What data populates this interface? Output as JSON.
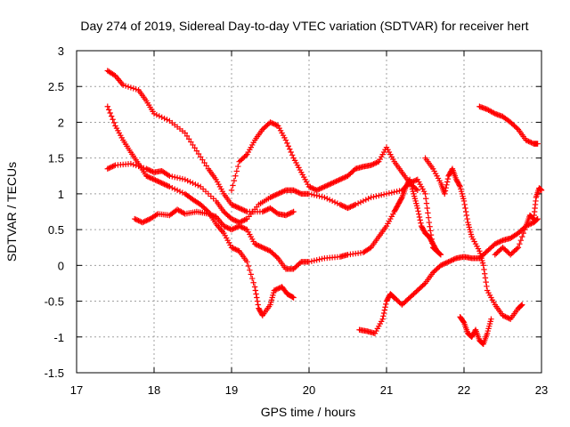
{
  "chart_data": {
    "type": "scatter",
    "title": "Day 274 of 2019, Sidereal Day-to-day VTEC variation (SDTVAR) for receiver hert",
    "xlabel": "GPS time / hours",
    "ylabel": "SDTVAR / TECUs",
    "xlim": [
      17,
      23
    ],
    "ylim": [
      -1.5,
      3
    ],
    "xticks": [
      "17",
      "18",
      "19",
      "20",
      "21",
      "22",
      "23"
    ],
    "yticks": [
      "-1.5",
      "-1",
      "-0.5",
      "0",
      "0.5",
      "1",
      "1.5",
      "2",
      "2.5",
      "3"
    ],
    "grid": true,
    "marker": "+",
    "color": "#ff0000",
    "series": [
      {
        "points": [
          [
            17.4,
            2.72
          ],
          [
            17.5,
            2.65
          ],
          [
            17.6,
            2.52
          ],
          [
            17.8,
            2.45
          ],
          [
            17.9,
            2.3
          ],
          [
            18.0,
            2.12
          ],
          [
            18.2,
            2.02
          ],
          [
            18.4,
            1.85
          ],
          [
            18.55,
            1.6
          ],
          [
            18.7,
            1.35
          ],
          [
            18.8,
            1.2
          ],
          [
            18.9,
            1.0
          ],
          [
            19.0,
            0.85
          ],
          [
            19.1,
            0.8
          ],
          [
            19.2,
            0.75
          ],
          [
            19.4,
            0.75
          ],
          [
            19.5,
            0.8
          ],
          [
            19.6,
            0.72
          ],
          [
            19.7,
            0.7
          ],
          [
            19.8,
            0.75
          ]
        ]
      },
      {
        "points": [
          [
            17.4,
            2.22
          ],
          [
            17.5,
            1.95
          ],
          [
            17.6,
            1.75
          ],
          [
            17.7,
            1.58
          ],
          [
            17.8,
            1.42
          ],
          [
            17.9,
            1.25
          ],
          [
            18.0,
            1.2
          ],
          [
            18.1,
            1.15
          ],
          [
            18.2,
            1.1
          ],
          [
            18.4,
            1.0
          ],
          [
            18.5,
            0.92
          ],
          [
            18.6,
            0.85
          ],
          [
            18.7,
            0.75
          ],
          [
            18.8,
            0.58
          ],
          [
            18.9,
            0.45
          ],
          [
            19.0,
            0.25
          ],
          [
            19.1,
            0.2
          ],
          [
            19.2,
            0.05
          ],
          [
            19.3,
            -0.3
          ],
          [
            19.35,
            -0.6
          ],
          [
            19.4,
            -0.7
          ],
          [
            19.5,
            -0.55
          ],
          [
            19.55,
            -0.35
          ],
          [
            19.65,
            -0.3
          ],
          [
            19.72,
            -0.4
          ],
          [
            19.8,
            -0.45
          ]
        ]
      },
      {
        "points": [
          [
            17.4,
            1.35
          ],
          [
            17.5,
            1.4
          ],
          [
            17.7,
            1.42
          ],
          [
            17.9,
            1.35
          ],
          [
            18.0,
            1.3
          ],
          [
            18.1,
            1.32
          ],
          [
            18.2,
            1.25
          ],
          [
            18.4,
            1.2
          ],
          [
            18.6,
            1.1
          ],
          [
            18.8,
            0.9
          ],
          [
            18.9,
            0.75
          ],
          [
            19.0,
            0.65
          ],
          [
            19.1,
            0.6
          ],
          [
            19.2,
            0.65
          ],
          [
            19.35,
            0.85
          ],
          [
            19.5,
            0.95
          ],
          [
            19.6,
            1.0
          ],
          [
            19.7,
            1.05
          ],
          [
            19.8,
            1.05
          ],
          [
            19.9,
            1.0
          ],
          [
            20.0,
            1.0
          ],
          [
            20.2,
            0.95
          ],
          [
            20.4,
            0.85
          ],
          [
            20.5,
            0.8
          ],
          [
            20.6,
            0.85
          ],
          [
            20.8,
            0.95
          ],
          [
            21.0,
            1.0
          ],
          [
            21.2,
            1.05
          ],
          [
            21.3,
            1.15
          ],
          [
            21.4,
            1.2
          ],
          [
            21.5,
            1.0
          ],
          [
            21.55,
            0.6
          ],
          [
            21.6,
            0.25
          ],
          [
            21.65,
            0.2
          ],
          [
            21.7,
            0.15
          ]
        ]
      },
      {
        "points": [
          [
            17.75,
            0.65
          ],
          [
            17.85,
            0.6
          ],
          [
            17.95,
            0.65
          ],
          [
            18.05,
            0.72
          ],
          [
            18.2,
            0.7
          ],
          [
            18.3,
            0.78
          ],
          [
            18.4,
            0.72
          ],
          [
            18.55,
            0.75
          ],
          [
            18.7,
            0.72
          ],
          [
            18.8,
            0.68
          ],
          [
            18.9,
            0.55
          ],
          [
            19.0,
            0.5
          ],
          [
            19.1,
            0.55
          ],
          [
            19.2,
            0.5
          ],
          [
            19.3,
            0.3
          ],
          [
            19.4,
            0.25
          ],
          [
            19.5,
            0.2
          ],
          [
            19.6,
            0.1
          ],
          [
            19.7,
            -0.05
          ],
          [
            19.8,
            -0.05
          ],
          [
            19.9,
            0.05
          ],
          [
            20.0,
            0.05
          ],
          [
            20.2,
            0.1
          ],
          [
            20.4,
            0.12
          ],
          [
            20.5,
            0.15
          ],
          [
            20.7,
            0.18
          ],
          [
            20.8,
            0.25
          ],
          [
            20.9,
            0.4
          ],
          [
            21.0,
            0.55
          ],
          [
            21.1,
            0.75
          ],
          [
            21.15,
            0.85
          ],
          [
            21.2,
            0.95
          ],
          [
            21.25,
            1.1
          ],
          [
            21.3,
            1.2
          ],
          [
            21.35,
            1.0
          ],
          [
            21.4,
            0.8
          ],
          [
            21.45,
            0.55
          ],
          [
            21.5,
            0.45
          ],
          [
            21.55,
            0.4
          ],
          [
            21.6,
            0.3
          ],
          [
            21.65,
            0.2
          ]
        ]
      },
      {
        "points": [
          [
            19.0,
            1.05
          ],
          [
            19.1,
            1.45
          ],
          [
            19.2,
            1.55
          ],
          [
            19.3,
            1.75
          ],
          [
            19.4,
            1.9
          ],
          [
            19.5,
            2.0
          ],
          [
            19.6,
            1.95
          ],
          [
            19.7,
            1.75
          ],
          [
            19.8,
            1.5
          ],
          [
            19.9,
            1.3
          ],
          [
            20.0,
            1.1
          ],
          [
            20.1,
            1.05
          ],
          [
            20.2,
            1.1
          ],
          [
            20.3,
            1.15
          ],
          [
            20.4,
            1.2
          ],
          [
            20.5,
            1.25
          ],
          [
            20.6,
            1.35
          ],
          [
            20.7,
            1.38
          ],
          [
            20.8,
            1.4
          ],
          [
            20.9,
            1.45
          ],
          [
            21.0,
            1.65
          ],
          [
            21.1,
            1.45
          ],
          [
            21.2,
            1.3
          ],
          [
            21.3,
            1.15
          ],
          [
            21.4,
            1.05
          ]
        ]
      },
      {
        "points": [
          [
            20.65,
            -0.9
          ],
          [
            20.75,
            -0.92
          ],
          [
            20.85,
            -0.95
          ],
          [
            20.95,
            -0.75
          ],
          [
            21.0,
            -0.5
          ],
          [
            21.05,
            -0.4
          ],
          [
            21.1,
            -0.45
          ],
          [
            21.2,
            -0.55
          ],
          [
            21.3,
            -0.45
          ],
          [
            21.4,
            -0.35
          ],
          [
            21.5,
            -0.25
          ],
          [
            21.6,
            -0.1
          ],
          [
            21.7,
            0.0
          ],
          [
            21.8,
            0.05
          ],
          [
            21.9,
            0.1
          ],
          [
            22.0,
            0.12
          ],
          [
            22.1,
            0.1
          ],
          [
            22.2,
            0.1
          ],
          [
            22.3,
            0.2
          ],
          [
            22.4,
            0.3
          ],
          [
            22.5,
            0.35
          ],
          [
            22.6,
            0.38
          ],
          [
            22.7,
            0.45
          ],
          [
            22.8,
            0.55
          ],
          [
            22.9,
            0.6
          ],
          [
            22.95,
            0.65
          ]
        ]
      },
      {
        "points": [
          [
            21.5,
            1.5
          ],
          [
            21.6,
            1.35
          ],
          [
            21.7,
            1.15
          ],
          [
            21.75,
            1.0
          ],
          [
            21.8,
            1.25
          ],
          [
            21.85,
            1.35
          ],
          [
            21.9,
            1.2
          ],
          [
            21.95,
            1.1
          ],
          [
            22.0,
            0.9
          ],
          [
            22.05,
            0.6
          ],
          [
            22.1,
            0.4
          ],
          [
            22.2,
            0.2
          ],
          [
            22.25,
            0.0
          ],
          [
            22.3,
            -0.35
          ],
          [
            22.4,
            -0.55
          ],
          [
            22.5,
            -0.7
          ],
          [
            22.6,
            -0.75
          ],
          [
            22.7,
            -0.6
          ],
          [
            22.75,
            -0.55
          ]
        ]
      },
      {
        "points": [
          [
            21.95,
            -0.72
          ],
          [
            22.0,
            -0.8
          ],
          [
            22.05,
            -0.95
          ],
          [
            22.1,
            -1.0
          ],
          [
            22.15,
            -0.9
          ],
          [
            22.2,
            -1.05
          ],
          [
            22.25,
            -1.1
          ],
          [
            22.3,
            -0.95
          ],
          [
            22.35,
            -0.75
          ]
        ]
      },
      {
        "points": [
          [
            22.2,
            2.22
          ],
          [
            22.3,
            2.18
          ],
          [
            22.4,
            2.12
          ],
          [
            22.5,
            2.08
          ],
          [
            22.6,
            2.0
          ],
          [
            22.7,
            1.9
          ],
          [
            22.8,
            1.75
          ],
          [
            22.9,
            1.7
          ],
          [
            22.95,
            1.7
          ]
        ]
      },
      {
        "points": [
          [
            22.4,
            0.15
          ],
          [
            22.5,
            0.25
          ],
          [
            22.6,
            0.15
          ],
          [
            22.7,
            0.25
          ],
          [
            22.8,
            0.55
          ],
          [
            22.85,
            0.7
          ],
          [
            22.9,
            0.65
          ],
          [
            22.93,
            0.95
          ],
          [
            22.97,
            1.08
          ],
          [
            23.0,
            1.05
          ]
        ]
      }
    ]
  }
}
